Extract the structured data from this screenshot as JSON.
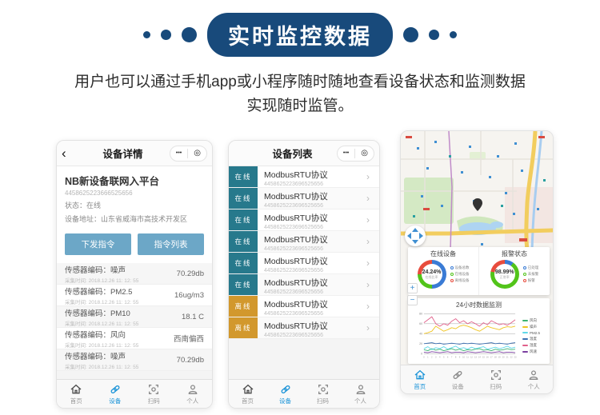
{
  "banner": {
    "title": "实时监控数据"
  },
  "subtitle": {
    "line1": "用户也可以通过手机app或小程序随时随地查看设备状态和监测数据",
    "line2": "实现随时监管。"
  },
  "colors": {
    "banner_navy": "#184a7b",
    "button_blue": "#6ca7c7",
    "online_teal": "#27798c",
    "offline_orange": "#d2982d",
    "active_tab_blue": "#1c94d8"
  },
  "phone1": {
    "nav": {
      "back": "‹",
      "title": "设备详情",
      "menu_dots": "•••",
      "menu_circle": "◎"
    },
    "device": {
      "name": "NB新设备联网入平台",
      "id": "4458625223666525656",
      "status": "状态：在线",
      "address": "设备地址：山东省威海市高技术开发区"
    },
    "buttons": {
      "send": "下发指令",
      "list": "指令列表"
    },
    "sensors": [
      {
        "label": "传感器编码：噪声",
        "time": "采集时间: 2018.12.26  11: 12: 55",
        "value": "70.29db"
      },
      {
        "label": "传感器编码：PM2.5",
        "time": "采集时间: 2018.12.26  11: 12: 55",
        "value": "16ug/m3"
      },
      {
        "label": "传感器编码：PM10",
        "time": "采集时间: 2018.12.26  11: 12: 55",
        "value": "18.1 C"
      },
      {
        "label": "传感器编码：风向",
        "time": "采集时间: 2018.12.26  11: 12: 55",
        "value": "西南偏西"
      },
      {
        "label": "传感器编码：噪声",
        "time": "采集时间: 2018.12.26  11: 12: 55",
        "value": "70.29db"
      }
    ]
  },
  "phone2": {
    "nav": {
      "title": "设备列表",
      "menu_dots": "•••",
      "menu_circle": "◎"
    },
    "chevron": "›",
    "devices": [
      {
        "status": "在线",
        "name": "ModbusRTU协议",
        "id": "4458625223696525656"
      },
      {
        "status": "在线",
        "name": "ModbusRTU协议",
        "id": "4458625223696525656"
      },
      {
        "status": "在线",
        "name": "ModbusRTU协议",
        "id": "4458625223696525656"
      },
      {
        "status": "在线",
        "name": "ModbusRTU协议",
        "id": "4458625223696525656"
      },
      {
        "status": "在线",
        "name": "ModbusRTU协议",
        "id": "4458625223696525656"
      },
      {
        "status": "在线",
        "name": "ModbusRTU协议",
        "id": "4458625223696525656"
      },
      {
        "status": "离线",
        "name": "ModbusRTU协议",
        "id": "4458625223696525656"
      },
      {
        "status": "离线",
        "name": "ModbusRTU协议",
        "id": "4458625223696525656"
      }
    ]
  },
  "phone3": {
    "gauges": [
      {
        "title": "在线设备",
        "value": "24.24%",
        "sub": "在线比率",
        "segments": [
          {
            "color": "#3a7bd5",
            "pct": 50
          },
          {
            "color": "#52c41a",
            "pct": 25
          },
          {
            "color": "#e84c3d",
            "pct": 25
          }
        ],
        "legend": [
          {
            "color": "#3a7bd5",
            "label": "设备总数"
          },
          {
            "color": "#52c41a",
            "label": "在线设备"
          },
          {
            "color": "#e84c3d",
            "label": "离线设备"
          }
        ]
      },
      {
        "title": "报警状态",
        "value": "98.99%",
        "sub": "正常率",
        "segments": [
          {
            "color": "#3a7bd5",
            "pct": 10
          },
          {
            "color": "#52c41a",
            "pct": 68
          },
          {
            "color": "#e84c3d",
            "pct": 22
          }
        ],
        "legend": [
          {
            "color": "#3a7bd5",
            "label": "已处理"
          },
          {
            "color": "#52c41a",
            "label": "未报警"
          },
          {
            "color": "#e84c3d",
            "label": "报警"
          }
        ]
      }
    ]
  },
  "tabbar": {
    "items": [
      {
        "label": "首页"
      },
      {
        "label": "设备"
      },
      {
        "label": "扫码"
      },
      {
        "label": "个人"
      }
    ]
  },
  "chart_data": {
    "type": "line",
    "title": "24小时数据监测",
    "x": [
      0,
      1,
      2,
      3,
      4,
      5,
      6,
      7,
      8,
      9,
      10,
      11,
      12,
      13,
      14,
      15,
      16,
      17,
      18,
      19,
      20,
      21,
      22,
      23
    ],
    "ylim": [
      0,
      80
    ],
    "yticks": [
      0,
      20,
      40,
      60,
      80
    ],
    "grid": true,
    "legend_position": "right",
    "series": [
      {
        "name": "风向",
        "color": "#3cb371",
        "values": [
          8,
          6,
          10,
          7,
          9,
          6,
          8,
          10,
          7,
          9,
          6,
          8,
          7,
          9,
          10,
          7,
          8,
          6,
          9,
          7,
          8,
          10,
          8,
          9
        ]
      },
      {
        "name": "噪声",
        "color": "#f0c420",
        "values": [
          40,
          42,
          45,
          55,
          50,
          45,
          48,
          52,
          50,
          55,
          57,
          55,
          52,
          48,
          45,
          50,
          55,
          52,
          50,
          48,
          52,
          54,
          53,
          55
        ]
      },
      {
        "name": "PM2.5",
        "color": "#5fd8e8",
        "values": [
          10,
          14,
          8,
          12,
          10,
          14,
          9,
          12,
          15,
          10,
          12,
          9,
          13,
          10,
          12,
          14,
          9,
          11,
          13,
          10,
          12,
          15,
          11,
          13
        ]
      },
      {
        "name": "温度",
        "color": "#3a6fb0",
        "values": [
          20,
          21,
          22,
          20,
          21,
          19,
          20,
          21,
          20,
          19,
          21,
          20,
          21,
          20,
          19,
          20,
          21,
          22,
          20,
          21,
          20,
          19,
          21,
          22
        ]
      },
      {
        "name": "湿度",
        "color": "#e0608a",
        "values": [
          62,
          68,
          74,
          60,
          55,
          60,
          57,
          65,
          70,
          62,
          66,
          60,
          64,
          60,
          55,
          62,
          58,
          66,
          62,
          58,
          60,
          57,
          62,
          68
        ]
      },
      {
        "name": "风速",
        "color": "#7b3fa0",
        "values": [
          3,
          2,
          4,
          3,
          2,
          3,
          4,
          2,
          3,
          3,
          2,
          4,
          3,
          2,
          3,
          4,
          3,
          2,
          3,
          4,
          2,
          3,
          3,
          2
        ]
      }
    ]
  }
}
